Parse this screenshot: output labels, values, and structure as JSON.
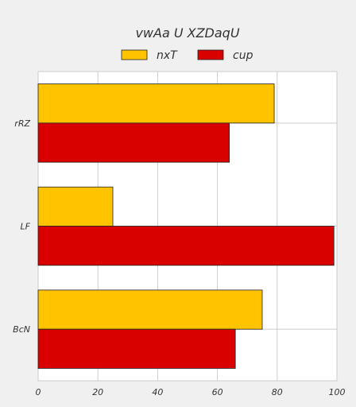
{
  "chart_data": {
    "type": "bar",
    "orientation": "horizontal",
    "title": "vwAa U XZDaqU",
    "categories": [
      "rRZ",
      "LF",
      "BcN"
    ],
    "series": [
      {
        "name": "nxT",
        "values": [
          79,
          25,
          75
        ],
        "color": "#ffc300"
      },
      {
        "name": "cup",
        "values": [
          64,
          99,
          66
        ],
        "color": "#d90000"
      }
    ],
    "xlim": [
      0,
      100
    ],
    "xticks": [
      "0",
      "20",
      "40",
      "60",
      "80",
      "100"
    ],
    "xlabel": "",
    "ylabel": "",
    "grid": true,
    "legend_position": "top-center"
  }
}
